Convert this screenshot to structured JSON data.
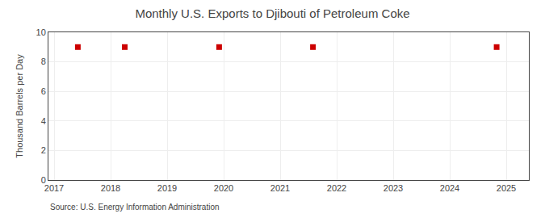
{
  "chart_data": {
    "type": "scatter",
    "title": "Monthly U.S. Exports to Djibouti of Petroleum Coke",
    "ylabel": "Thousand Barrels per Day",
    "annotations": [
      "Source: U.S. Energy Information Administration"
    ],
    "x": [
      2017.42,
      2018.25,
      2019.92,
      2021.58,
      2024.83
    ],
    "values": [
      9,
      9,
      9,
      9,
      9
    ],
    "color": "#cc0000",
    "marker": "square",
    "xlim": [
      2016.9,
      2025.4
    ],
    "ylim": [
      0,
      10
    ],
    "xticks": [
      2017,
      2018,
      2019,
      2020,
      2021,
      2022,
      2023,
      2024,
      2025
    ],
    "yticks": [
      0,
      2,
      4,
      6,
      8,
      10
    ],
    "grid": true
  }
}
